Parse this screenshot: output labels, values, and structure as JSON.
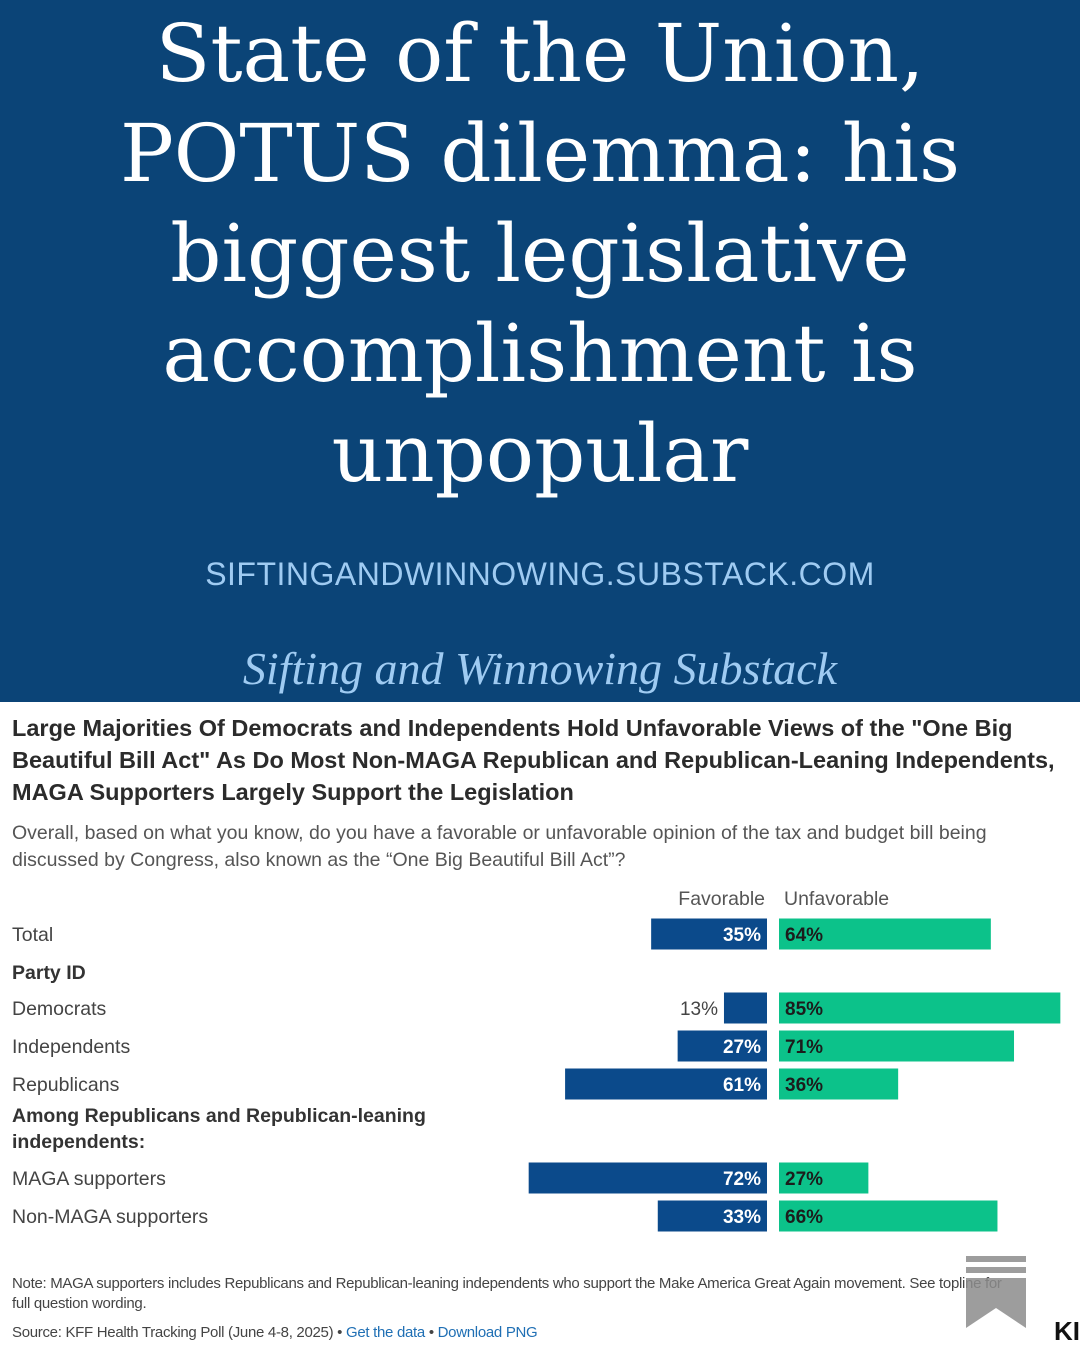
{
  "header": {
    "headline": "State of the Union, POTUS dilemma: his biggest legislative accomplishment is unpopular",
    "site_url": "SIFTINGANDWINNOWING.SUBSTACK.COM",
    "publication": "Sifting and Winnowing Substack",
    "bg_color": "#0b4477"
  },
  "chart_data": {
    "type": "bar",
    "title_lines": [
      "Large Majorities Of Democrats and Independents Hold Unfavorable Views of the \"One Big",
      "Beautiful Bill Act\" As Do Most Non-MAGA Republican and Republican-Leaning Independents,",
      "MAGA Supporters Largely Support the Legislation"
    ],
    "question": "Overall, based on what you know, do you have a favorable or unfavorable opinion of the tax and budget bill being discussed by Congress, also known as the “One Big Beautiful Bill Act”?",
    "series_names": [
      "Favorable",
      "Unfavorable"
    ],
    "colors": {
      "favorable": "#0b4a8b",
      "unfavorable": "#0cc28a"
    },
    "rows": [
      {
        "kind": "data",
        "label": "Total",
        "favorable": 35,
        "unfavorable": 64,
        "favorable_label": "35%",
        "unfavorable_label": "64%"
      },
      {
        "kind": "heading",
        "label": "Party ID"
      },
      {
        "kind": "data",
        "label": "Democrats",
        "favorable": 13,
        "unfavorable": 85,
        "favorable_label": "13%",
        "unfavorable_label": "85%"
      },
      {
        "kind": "data",
        "label": "Independents",
        "favorable": 27,
        "unfavorable": 71,
        "favorable_label": "27%",
        "unfavorable_label": "71%"
      },
      {
        "kind": "data",
        "label": "Republicans",
        "favorable": 61,
        "unfavorable": 36,
        "favorable_label": "61%",
        "unfavorable_label": "36%"
      },
      {
        "kind": "heading",
        "label": "Among Republicans and Republican-leaning independents:"
      },
      {
        "kind": "data",
        "label": "MAGA supporters",
        "favorable": 72,
        "unfavorable": 27,
        "favorable_label": "72%",
        "unfavorable_label": "27%"
      },
      {
        "kind": "data",
        "label": "Non-MAGA supporters",
        "favorable": 33,
        "unfavorable": 66,
        "favorable_label": "33%",
        "unfavorable_label": "66%"
      }
    ],
    "note": "Note: MAGA supporters includes Republicans and Republican-leaning independents who support the Make America Great Again movement. See topline for full question wording.",
    "source": {
      "text": "Source: KFF Health Tracking Poll (June 4-8, 2025) • ",
      "link1": "Get the data",
      "separator": " • ",
      "link2": "Download PNG"
    },
    "logo_fragment": "KI"
  }
}
